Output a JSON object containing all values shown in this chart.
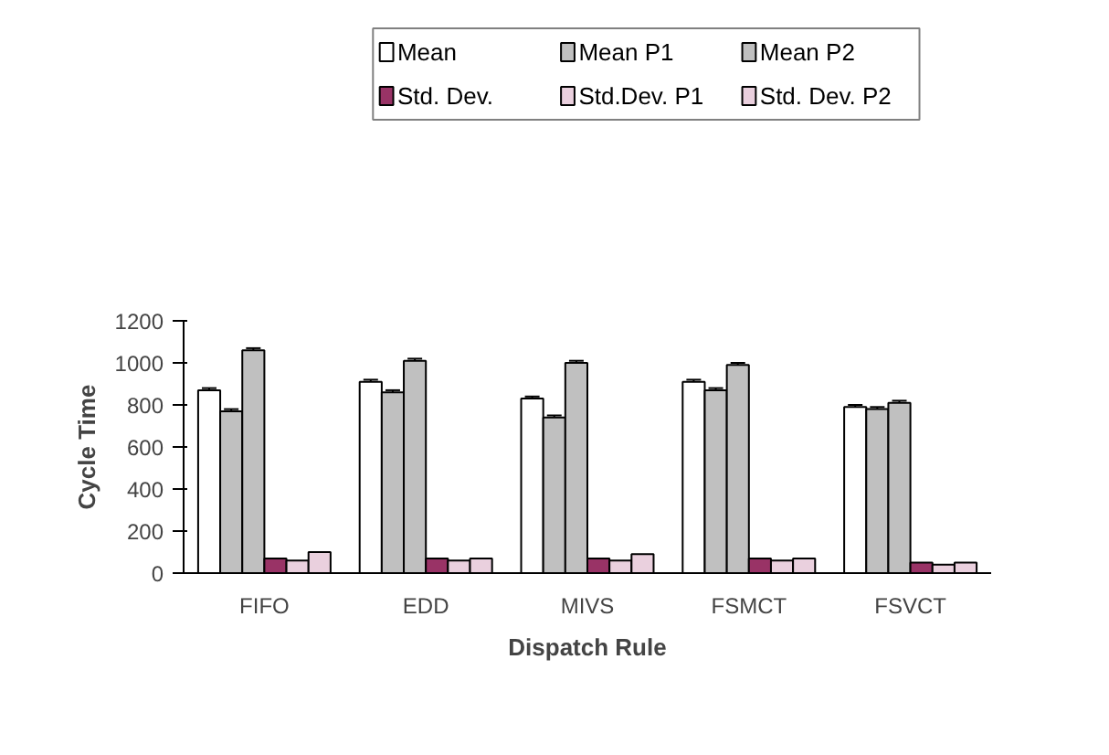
{
  "chart_data": {
    "type": "bar",
    "xlabel": "Dispatch Rule",
    "ylabel": "Cycle Time",
    "categories": [
      "FIFO",
      "EDD",
      "MIVS",
      "FSMCT",
      "FSVCT"
    ],
    "series": [
      {
        "name": "Mean",
        "color": "#ffffff",
        "values": [
          870,
          910,
          830,
          910,
          790
        ],
        "errors": [
          10,
          10,
          10,
          10,
          10
        ]
      },
      {
        "name": "Mean P1",
        "color": "#c0c0c0",
        "values": [
          770,
          860,
          740,
          870,
          780
        ],
        "errors": [
          10,
          10,
          10,
          10,
          10
        ]
      },
      {
        "name": "Mean P2",
        "color": "#c0c0c0",
        "values": [
          1060,
          1010,
          1000,
          990,
          810
        ],
        "errors": [
          10,
          10,
          10,
          10,
          10
        ]
      },
      {
        "name": "Std. Dev.",
        "color": "#993366",
        "values": [
          70,
          70,
          70,
          70,
          50
        ]
      },
      {
        "name": "Std.Dev. P1",
        "color": "#ead0de",
        "values": [
          60,
          60,
          60,
          60,
          40
        ]
      },
      {
        "name": "Std. Dev. P2",
        "color": "#ead0de",
        "values": [
          100,
          70,
          90,
          70,
          50
        ]
      }
    ],
    "ylim": [
      0,
      1200
    ],
    "yticks": [
      0,
      200,
      400,
      600,
      800,
      1000,
      1200
    ],
    "grid": false,
    "legend": "top"
  }
}
